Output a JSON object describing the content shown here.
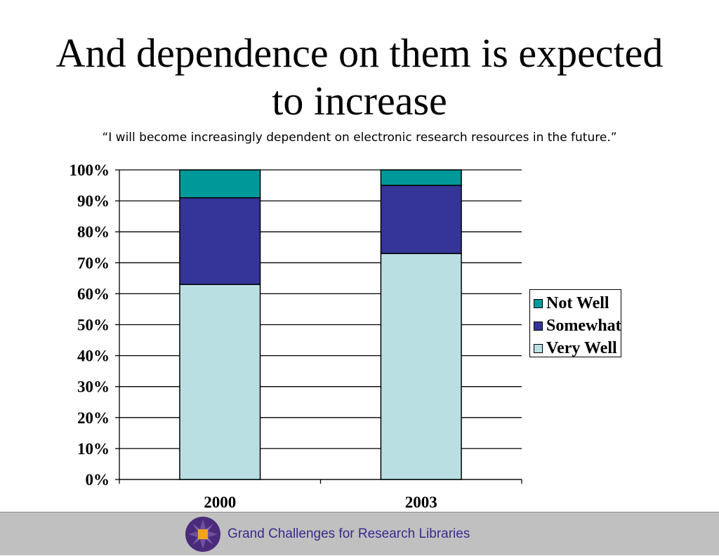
{
  "slide": {
    "title_line1": "And dependence on them is expected",
    "title_line2": "to increase",
    "subtitle": "“I will become increasingly dependent on electronic research resources in the future.”"
  },
  "chart_data": {
    "type": "bar",
    "stacked": true,
    "categories": [
      "2000",
      "2003"
    ],
    "series": [
      {
        "name": "Very Well",
        "values": [
          63,
          73
        ],
        "color": "#b9dfe2"
      },
      {
        "name": "Somewhat",
        "values": [
          28,
          22
        ],
        "color": "#343499"
      },
      {
        "name": "Not Well",
        "values": [
          9,
          5
        ],
        "color": "#009999"
      }
    ],
    "y_ticks": [
      "0%",
      "10%",
      "20%",
      "30%",
      "40%",
      "50%",
      "60%",
      "70%",
      "80%",
      "90%",
      "100%"
    ],
    "ylim": [
      0,
      100
    ],
    "grid": true,
    "legend_position": "right",
    "legend_order": [
      "Not Well",
      "Somewhat",
      "Very Well"
    ]
  },
  "footer": {
    "text": "Grand Challenges for Research Libraries",
    "background": "#c0c0c0",
    "logo_icon": "arl-logo-icon"
  }
}
